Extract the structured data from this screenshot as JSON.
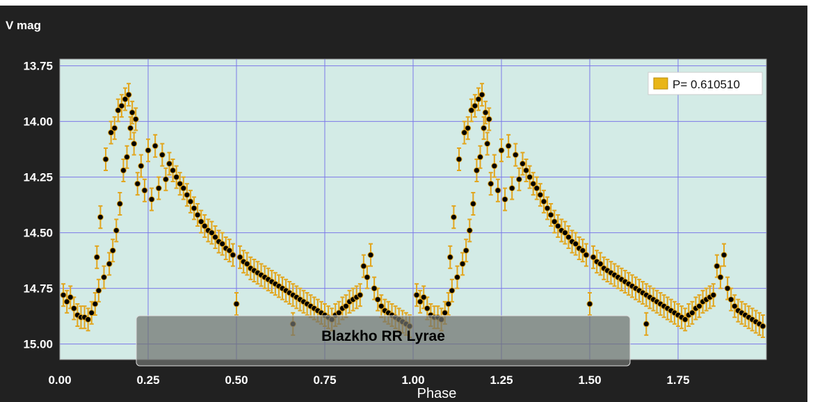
{
  "colors": {
    "background": "#212121",
    "plot_area": "#d3ebe6",
    "grid": "#7b78e8",
    "point": "#000000",
    "error_bar": "#e2a51c",
    "legend_swatch": "#e9b517"
  },
  "chart_data": {
    "type": "scatter",
    "ylabel": "V mag",
    "xlabel": "Phase",
    "xlim": [
      0.0,
      2.0
    ],
    "ylim": [
      15.07,
      13.72
    ],
    "y_inverted": true,
    "grid": true,
    "x_ticks": [
      "0.00",
      "0.25",
      "0.50",
      "0.75",
      "1.00",
      "1.25",
      "1.50",
      "1.75"
    ],
    "y_ticks": [
      "13.75",
      "14.00",
      "14.25",
      "14.50",
      "14.75",
      "15.00"
    ],
    "legend": {
      "label": "P= 0.610510",
      "position": "top-right"
    },
    "annotation": "Blazkho RR Lyrae",
    "error_bar": 0.05,
    "series": [
      {
        "name": "P= 0.610510",
        "points": [
          [
            0.01,
            14.78
          ],
          [
            0.02,
            14.81
          ],
          [
            0.03,
            14.79
          ],
          [
            0.04,
            14.84
          ],
          [
            0.05,
            14.87
          ],
          [
            0.06,
            14.88
          ],
          [
            0.07,
            14.88
          ],
          [
            0.08,
            14.89
          ],
          [
            0.09,
            14.86
          ],
          [
            0.1,
            14.82
          ],
          [
            0.11,
            14.76
          ],
          [
            0.105,
            14.61
          ],
          [
            0.115,
            14.43
          ],
          [
            0.125,
            14.7
          ],
          [
            0.13,
            14.17
          ],
          [
            0.14,
            14.64
          ],
          [
            0.145,
            14.05
          ],
          [
            0.15,
            14.58
          ],
          [
            0.155,
            14.03
          ],
          [
            0.16,
            14.49
          ],
          [
            0.165,
            13.95
          ],
          [
            0.17,
            14.37
          ],
          [
            0.175,
            13.93
          ],
          [
            0.18,
            14.22
          ],
          [
            0.185,
            13.9
          ],
          [
            0.19,
            14.16
          ],
          [
            0.195,
            13.88
          ],
          [
            0.2,
            14.03
          ],
          [
            0.205,
            13.96
          ],
          [
            0.21,
            14.1
          ],
          [
            0.215,
            13.99
          ],
          [
            0.22,
            14.28
          ],
          [
            0.23,
            14.2
          ],
          [
            0.24,
            14.31
          ],
          [
            0.25,
            14.13
          ],
          [
            0.26,
            14.35
          ],
          [
            0.27,
            14.11
          ],
          [
            0.28,
            14.3
          ],
          [
            0.29,
            14.15
          ],
          [
            0.3,
            14.26
          ],
          [
            0.31,
            14.19
          ],
          [
            0.32,
            14.22
          ],
          [
            0.33,
            14.25
          ],
          [
            0.34,
            14.28
          ],
          [
            0.35,
            14.3
          ],
          [
            0.36,
            14.33
          ],
          [
            0.37,
            14.36
          ],
          [
            0.38,
            14.39
          ],
          [
            0.39,
            14.42
          ],
          [
            0.4,
            14.45
          ],
          [
            0.41,
            14.47
          ],
          [
            0.42,
            14.49
          ],
          [
            0.43,
            14.5
          ],
          [
            0.44,
            14.52
          ],
          [
            0.45,
            14.54
          ],
          [
            0.46,
            14.55
          ],
          [
            0.47,
            14.57
          ],
          [
            0.48,
            14.58
          ],
          [
            0.49,
            14.6
          ],
          [
            0.5,
            14.82
          ],
          [
            0.51,
            14.61
          ],
          [
            0.52,
            14.63
          ],
          [
            0.53,
            14.64
          ],
          [
            0.54,
            14.66
          ],
          [
            0.55,
            14.67
          ],
          [
            0.56,
            14.68
          ],
          [
            0.57,
            14.69
          ],
          [
            0.58,
            14.7
          ],
          [
            0.59,
            14.71
          ],
          [
            0.6,
            14.72
          ],
          [
            0.61,
            14.73
          ],
          [
            0.62,
            14.74
          ],
          [
            0.63,
            14.75
          ],
          [
            0.64,
            14.76
          ],
          [
            0.65,
            14.77
          ],
          [
            0.66,
            14.78
          ],
          [
            0.67,
            14.79
          ],
          [
            0.68,
            14.8
          ],
          [
            0.69,
            14.81
          ],
          [
            0.7,
            14.82
          ],
          [
            0.71,
            14.83
          ],
          [
            0.72,
            14.84
          ],
          [
            0.73,
            14.85
          ],
          [
            0.74,
            14.86
          ],
          [
            0.75,
            14.87
          ],
          [
            0.76,
            14.88
          ],
          [
            0.77,
            14.89
          ],
          [
            0.78,
            14.87
          ],
          [
            0.79,
            14.86
          ],
          [
            0.8,
            14.84
          ],
          [
            0.81,
            14.83
          ],
          [
            0.82,
            14.81
          ],
          [
            0.83,
            14.8
          ],
          [
            0.84,
            14.79
          ],
          [
            0.85,
            14.78
          ],
          [
            0.86,
            14.65
          ],
          [
            0.87,
            14.7
          ],
          [
            0.88,
            14.6
          ],
          [
            0.89,
            14.75
          ],
          [
            0.9,
            14.8
          ],
          [
            0.91,
            14.83
          ],
          [
            0.92,
            14.85
          ],
          [
            0.93,
            14.86
          ],
          [
            0.94,
            14.87
          ],
          [
            0.95,
            14.88
          ],
          [
            0.96,
            14.89
          ],
          [
            0.97,
            14.9
          ],
          [
            0.98,
            14.91
          ],
          [
            0.99,
            14.92
          ],
          [
            0.66,
            14.91
          ]
        ]
      }
    ]
  }
}
